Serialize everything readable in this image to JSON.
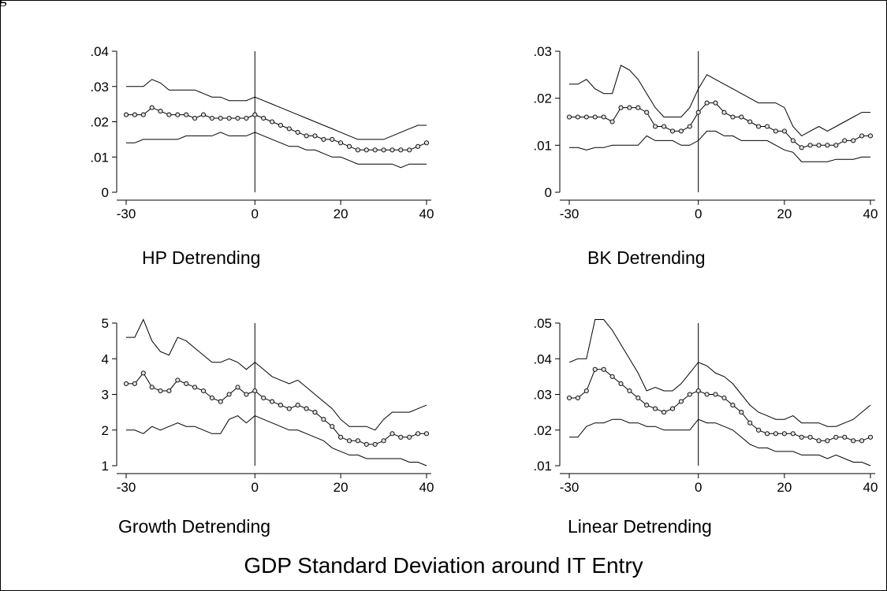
{
  "figure": {
    "corner_label": "g",
    "main_title": "GDP Standard Deviation around IT Entry"
  },
  "chart_data": [
    {
      "type": "line",
      "title": "HP Detrending",
      "xlim": [
        -30,
        40
      ],
      "ylim": [
        0,
        0.04
      ],
      "xticks": [
        "-30",
        "0",
        "20",
        "40"
      ],
      "yticks": [
        "0",
        ".01",
        ".02",
        ".03",
        ".04"
      ],
      "vline": 0,
      "x": [
        -30,
        -28,
        -26,
        -24,
        -22,
        -20,
        -18,
        -16,
        -14,
        -12,
        -10,
        -8,
        -6,
        -4,
        -2,
        0,
        2,
        4,
        6,
        8,
        10,
        12,
        14,
        16,
        18,
        20,
        22,
        24,
        26,
        28,
        30,
        32,
        34,
        36,
        38,
        40
      ],
      "series": [
        {
          "role": "upper",
          "values": [
            0.03,
            0.03,
            0.03,
            0.032,
            0.031,
            0.029,
            0.029,
            0.029,
            0.029,
            0.028,
            0.027,
            0.027,
            0.026,
            0.026,
            0.026,
            0.027,
            0.026,
            0.025,
            0.024,
            0.023,
            0.022,
            0.021,
            0.02,
            0.019,
            0.018,
            0.017,
            0.016,
            0.015,
            0.015,
            0.015,
            0.015,
            0.016,
            0.017,
            0.018,
            0.019,
            0.019
          ]
        },
        {
          "role": "estimate",
          "values": [
            0.022,
            0.022,
            0.022,
            0.024,
            0.023,
            0.022,
            0.022,
            0.022,
            0.021,
            0.022,
            0.021,
            0.021,
            0.021,
            0.021,
            0.021,
            0.022,
            0.021,
            0.02,
            0.019,
            0.018,
            0.017,
            0.016,
            0.016,
            0.015,
            0.015,
            0.014,
            0.013,
            0.012,
            0.012,
            0.012,
            0.012,
            0.012,
            0.012,
            0.012,
            0.013,
            0.014
          ]
        },
        {
          "role": "lower",
          "values": [
            0.014,
            0.014,
            0.015,
            0.015,
            0.015,
            0.015,
            0.015,
            0.016,
            0.016,
            0.016,
            0.016,
            0.017,
            0.016,
            0.016,
            0.016,
            0.017,
            0.016,
            0.015,
            0.014,
            0.013,
            0.013,
            0.012,
            0.012,
            0.011,
            0.01,
            0.01,
            0.009,
            0.008,
            0.008,
            0.008,
            0.008,
            0.008,
            0.007,
            0.008,
            0.008,
            0.008
          ]
        }
      ]
    },
    {
      "type": "line",
      "title": "BK Detrending",
      "xlim": [
        -30,
        40
      ],
      "ylim": [
        0,
        0.03
      ],
      "xticks": [
        "-30",
        "0",
        "20",
        "40"
      ],
      "yticks": [
        "0",
        ".01",
        ".02",
        ".03"
      ],
      "vline": 0,
      "x": [
        -30,
        -28,
        -26,
        -24,
        -22,
        -20,
        -18,
        -16,
        -14,
        -12,
        -10,
        -8,
        -6,
        -4,
        -2,
        0,
        2,
        4,
        6,
        8,
        10,
        12,
        14,
        16,
        18,
        20,
        22,
        24,
        26,
        28,
        30,
        32,
        34,
        36,
        38,
        40
      ],
      "series": [
        {
          "role": "upper",
          "values": [
            0.023,
            0.023,
            0.024,
            0.022,
            0.021,
            0.021,
            0.027,
            0.026,
            0.024,
            0.021,
            0.018,
            0.016,
            0.016,
            0.016,
            0.018,
            0.022,
            0.025,
            0.024,
            0.023,
            0.022,
            0.021,
            0.02,
            0.019,
            0.019,
            0.019,
            0.018,
            0.014,
            0.012,
            0.013,
            0.014,
            0.013,
            0.014,
            0.015,
            0.016,
            0.017,
            0.017
          ]
        },
        {
          "role": "estimate",
          "values": [
            0.016,
            0.016,
            0.016,
            0.016,
            0.016,
            0.015,
            0.018,
            0.018,
            0.018,
            0.017,
            0.014,
            0.014,
            0.013,
            0.013,
            0.014,
            0.017,
            0.019,
            0.019,
            0.017,
            0.016,
            0.016,
            0.015,
            0.014,
            0.014,
            0.013,
            0.013,
            0.011,
            0.0095,
            0.01,
            0.01,
            0.01,
            0.01,
            0.011,
            0.011,
            0.012,
            0.012
          ]
        },
        {
          "role": "lower",
          "values": [
            0.0095,
            0.0095,
            0.009,
            0.0095,
            0.0095,
            0.01,
            0.01,
            0.01,
            0.01,
            0.012,
            0.011,
            0.011,
            0.011,
            0.01,
            0.01,
            0.011,
            0.013,
            0.013,
            0.012,
            0.012,
            0.011,
            0.011,
            0.011,
            0.011,
            0.01,
            0.009,
            0.0085,
            0.0065,
            0.0065,
            0.0065,
            0.0065,
            0.007,
            0.007,
            0.007,
            0.0075,
            0.0075
          ]
        }
      ]
    },
    {
      "type": "line",
      "title": "Growth Detrending",
      "xlim": [
        -30,
        40
      ],
      "ylim": [
        1,
        5
      ],
      "xticks": [
        "-30",
        "0",
        "20",
        "40"
      ],
      "yticks": [
        "1",
        "2",
        "3",
        "4",
        "5"
      ],
      "vline": 0,
      "x": [
        -30,
        -28,
        -26,
        -24,
        -22,
        -20,
        -18,
        -16,
        -14,
        -12,
        -10,
        -8,
        -6,
        -4,
        -2,
        0,
        2,
        4,
        6,
        8,
        10,
        12,
        14,
        16,
        18,
        20,
        22,
        24,
        26,
        28,
        30,
        32,
        34,
        36,
        38,
        40
      ],
      "series": [
        {
          "role": "upper",
          "values": [
            4.6,
            4.6,
            5.1,
            4.5,
            4.2,
            4.1,
            4.6,
            4.5,
            4.3,
            4.1,
            3.9,
            3.9,
            4.0,
            3.9,
            3.7,
            3.9,
            3.7,
            3.5,
            3.4,
            3.3,
            3.4,
            3.2,
            3.0,
            2.8,
            2.6,
            2.3,
            2.1,
            2.1,
            2.1,
            2.0,
            2.3,
            2.5,
            2.5,
            2.5,
            2.6,
            2.7
          ]
        },
        {
          "role": "estimate",
          "values": [
            3.3,
            3.3,
            3.6,
            3.2,
            3.1,
            3.1,
            3.4,
            3.3,
            3.2,
            3.1,
            2.9,
            2.8,
            3.0,
            3.2,
            3.0,
            3.1,
            2.9,
            2.8,
            2.7,
            2.6,
            2.7,
            2.6,
            2.5,
            2.3,
            2.1,
            1.8,
            1.7,
            1.7,
            1.6,
            1.6,
            1.7,
            1.9,
            1.8,
            1.8,
            1.9,
            1.9
          ]
        },
        {
          "role": "lower",
          "values": [
            2.0,
            2.0,
            1.9,
            2.1,
            2.0,
            2.1,
            2.2,
            2.1,
            2.1,
            2.0,
            1.9,
            1.9,
            2.3,
            2.4,
            2.2,
            2.4,
            2.3,
            2.2,
            2.1,
            2.0,
            2.0,
            1.9,
            1.8,
            1.7,
            1.5,
            1.4,
            1.3,
            1.3,
            1.2,
            1.2,
            1.2,
            1.2,
            1.2,
            1.1,
            1.1,
            1.0
          ]
        }
      ]
    },
    {
      "type": "line",
      "title": "Linear Detrending",
      "xlim": [
        -30,
        40
      ],
      "ylim": [
        0.01,
        0.05
      ],
      "xticks": [
        "-30",
        "0",
        "20",
        "40"
      ],
      "yticks": [
        ".01",
        ".02",
        ".03",
        ".04",
        ".05"
      ],
      "vline": 0,
      "x": [
        -30,
        -28,
        -26,
        -24,
        -22,
        -20,
        -18,
        -16,
        -14,
        -12,
        -10,
        -8,
        -6,
        -4,
        -2,
        0,
        2,
        4,
        6,
        8,
        10,
        12,
        14,
        16,
        18,
        20,
        22,
        24,
        26,
        28,
        30,
        32,
        34,
        36,
        38,
        40
      ],
      "series": [
        {
          "role": "upper",
          "values": [
            0.039,
            0.04,
            0.04,
            0.051,
            0.051,
            0.048,
            0.044,
            0.04,
            0.036,
            0.031,
            0.032,
            0.031,
            0.031,
            0.033,
            0.036,
            0.039,
            0.038,
            0.036,
            0.035,
            0.033,
            0.03,
            0.027,
            0.025,
            0.024,
            0.023,
            0.023,
            0.024,
            0.022,
            0.022,
            0.022,
            0.021,
            0.021,
            0.022,
            0.023,
            0.025,
            0.027
          ]
        },
        {
          "role": "estimate",
          "values": [
            0.029,
            0.029,
            0.031,
            0.037,
            0.037,
            0.035,
            0.033,
            0.031,
            0.029,
            0.027,
            0.026,
            0.025,
            0.026,
            0.028,
            0.03,
            0.031,
            0.03,
            0.03,
            0.029,
            0.027,
            0.025,
            0.022,
            0.02,
            0.019,
            0.019,
            0.019,
            0.019,
            0.018,
            0.018,
            0.017,
            0.017,
            0.018,
            0.018,
            0.017,
            0.017,
            0.018
          ]
        },
        {
          "role": "lower",
          "values": [
            0.018,
            0.018,
            0.021,
            0.022,
            0.022,
            0.023,
            0.023,
            0.022,
            0.022,
            0.021,
            0.021,
            0.02,
            0.02,
            0.02,
            0.02,
            0.023,
            0.022,
            0.022,
            0.021,
            0.02,
            0.018,
            0.016,
            0.015,
            0.015,
            0.014,
            0.014,
            0.014,
            0.013,
            0.013,
            0.013,
            0.012,
            0.013,
            0.012,
            0.011,
            0.011,
            0.01
          ]
        }
      ]
    }
  ]
}
